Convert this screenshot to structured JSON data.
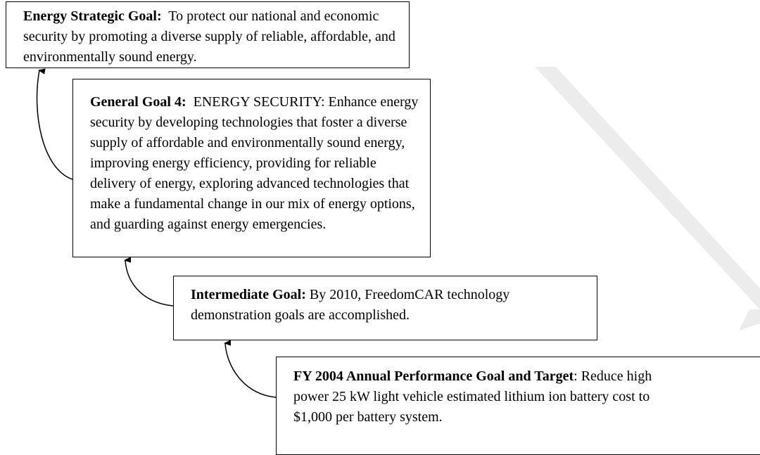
{
  "boxes": [
    {
      "label": "Energy Strategic Goal:",
      "text": "To protect our national and economic security by promoting a diverse supply of reliable, affordable, and environmentally sound energy."
    },
    {
      "label": "General Goal 4:",
      "text": "ENERGY SECURITY:  Enhance energy security by developing technologies that foster a diverse supply of affordable and environmentally sound energy, improving energy efficiency, providing for reliable delivery of energy, exploring advanced technologies that make a fundamental change in our mix of energy options, and guarding against energy emergencies."
    },
    {
      "label": "Intermediate Goal:",
      "text": "By 2010, FreedomCAR technology demonstration goals are accomplished."
    },
    {
      "label": "FY 2004 Annual Performance Goal and Target",
      "text": ": Reduce high power 25 kW light vehicle estimated lithium ion battery cost to $1,000 per battery system."
    }
  ]
}
